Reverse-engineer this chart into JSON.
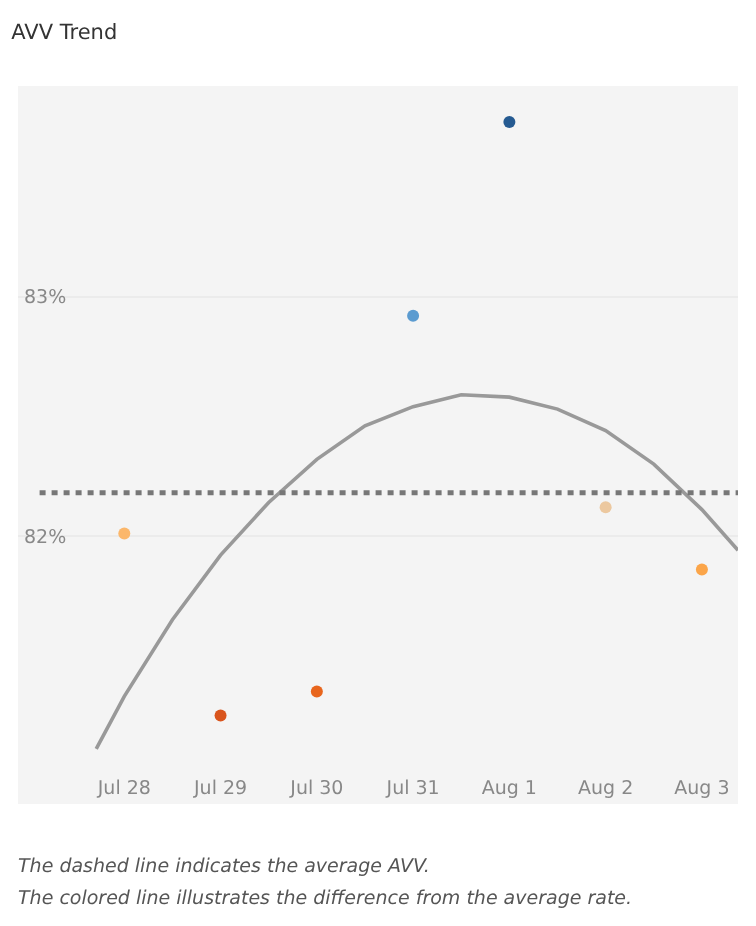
{
  "chart_data": {
    "type": "scatter",
    "title": "AVV Trend",
    "x": [
      "--07-28",
      "--07-29",
      "--07-30",
      "--07-31",
      "--08-01",
      "--08-02",
      "--08-03"
    ],
    "xlim": [
      "--07-26T21:30",
      "--08-03T09:00"
    ],
    "xticks": [
      {
        "value": "--07-28",
        "label": "Jul 28"
      },
      {
        "value": "--07-29",
        "label": "Jul 29"
      },
      {
        "value": "--07-30",
        "label": "Jul 30"
      },
      {
        "value": "--07-31",
        "label": "Jul 31"
      },
      {
        "value": "--08-01",
        "label": "Aug 1"
      },
      {
        "value": "--08-02",
        "label": "Aug 2"
      },
      {
        "value": "--08-03",
        "label": "Aug 3"
      }
    ],
    "ylim": [
      80.88,
      83.88
    ],
    "yticks": [
      {
        "value": 82,
        "label": "82%"
      },
      {
        "value": 83,
        "label": "83%"
      }
    ],
    "grid": "y",
    "marker": "circle",
    "series": [
      {
        "colors": [
          "#fbb76b",
          "#d9541c",
          "#e8651c",
          "#5b9bd0",
          "#255a91",
          "#ecc89f",
          "#fba549"
        ],
        "values": [
          82.01,
          81.25,
          81.35,
          82.92,
          83.73,
          82.12,
          81.86
        ]
      },
      {
        "type": "line",
        "color": "#999999",
        "marker": "none",
        "line_style": "solid",
        "x": [
          "--07-27T17:00",
          "--07-28",
          "--07-28T12:00",
          "--07-29",
          "--07-29T12:00",
          "--07-30",
          "--07-30T12:00",
          "--07-31",
          "--07-31T12:00",
          "--08-01",
          "--08-01T12:00",
          "--08-02",
          "--08-02T12:00",
          "--08-03",
          "--08-03T09:00"
        ],
        "values": [
          81.11,
          81.33,
          81.65,
          81.92,
          82.14,
          82.32,
          82.46,
          82.54,
          82.59,
          82.58,
          82.53,
          82.44,
          82.3,
          82.11,
          81.94
        ]
      }
    ],
    "ref_lines": [
      {
        "axis": "y",
        "value": 82.18,
        "color": "#777777",
        "line_style": "dotted"
      }
    ],
    "annotations": [
      "The dashed line indicates the average AVV.",
      "The colored line illustrates the difference from the average rate."
    ]
  }
}
